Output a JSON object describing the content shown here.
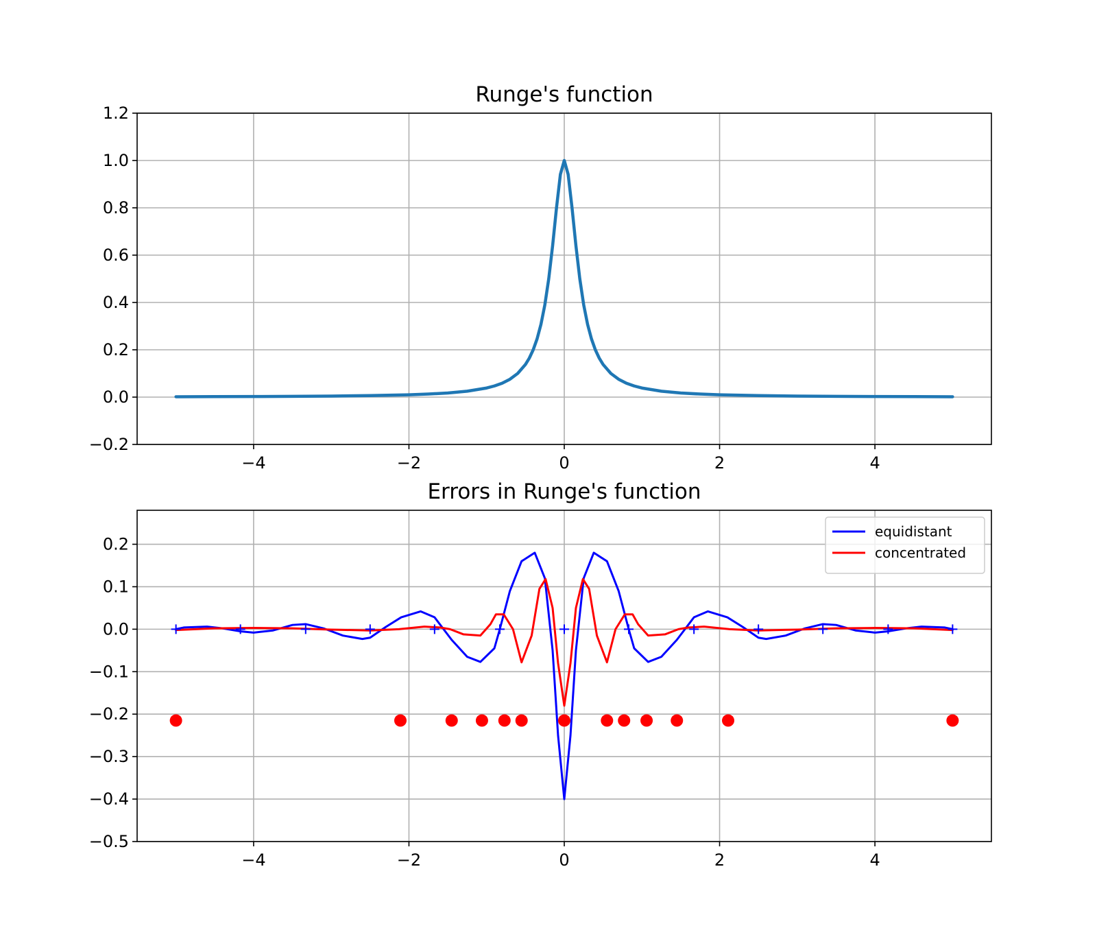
{
  "chart_data": [
    {
      "type": "line",
      "title": "Runge's function",
      "xlabel": "",
      "ylabel": "",
      "xlim": [
        -5.5,
        5.5
      ],
      "ylim": [
        -0.2,
        1.2
      ],
      "xticks": [
        -4,
        -2,
        0,
        2,
        4
      ],
      "xtick_labels": [
        "−4",
        "−2",
        "0",
        "2",
        "4"
      ],
      "yticks": [
        -0.2,
        0.0,
        0.2,
        0.4,
        0.6,
        0.8,
        1.0,
        1.2
      ],
      "ytick_labels": [
        "−0.2",
        "0.0",
        "0.2",
        "0.4",
        "0.6",
        "0.8",
        "1.0",
        "1.2"
      ],
      "grid": true,
      "series": [
        {
          "color": "#1f77b4",
          "x": [
            -5,
            -4.5,
            -4,
            -3.5,
            -3,
            -2.5,
            -2,
            -1.75,
            -1.5,
            -1.25,
            -1,
            -0.9,
            -0.8,
            -0.7,
            -0.6,
            -0.5,
            -0.45,
            -0.4,
            -0.35,
            -0.3,
            -0.25,
            -0.2,
            -0.15,
            -0.1,
            -0.05,
            0,
            0.05,
            0.1,
            0.15,
            0.2,
            0.25,
            0.3,
            0.35,
            0.4,
            0.45,
            0.5,
            0.6,
            0.7,
            0.8,
            0.9,
            1,
            1.25,
            1.5,
            1.75,
            2,
            2.5,
            3,
            3.5,
            4,
            4.5,
            5
          ],
          "values": [
            0.0016,
            0.002,
            0.0025,
            0.0033,
            0.0044,
            0.0064,
            0.0099,
            0.0129,
            0.0175,
            0.025,
            0.0385,
            0.0471,
            0.0588,
            0.0755,
            0.1,
            0.1379,
            0.1649,
            0.2,
            0.2462,
            0.3077,
            0.3902,
            0.5,
            0.64,
            0.8,
            0.9412,
            1.0,
            0.9412,
            0.8,
            0.64,
            0.5,
            0.3902,
            0.3077,
            0.2462,
            0.2,
            0.1649,
            0.1379,
            0.1,
            0.0755,
            0.0588,
            0.0471,
            0.0385,
            0.025,
            0.0175,
            0.0129,
            0.0099,
            0.0064,
            0.0044,
            0.0033,
            0.0025,
            0.002,
            0.0016
          ]
        }
      ]
    },
    {
      "type": "line",
      "title": "Errors in Runge's function",
      "xlabel": "",
      "ylabel": "",
      "xlim": [
        -5.5,
        5.5
      ],
      "ylim": [
        -0.5,
        0.28
      ],
      "xticks": [
        -4,
        -2,
        0,
        2,
        4
      ],
      "xtick_labels": [
        "−4",
        "−2",
        "0",
        "2",
        "4"
      ],
      "yticks": [
        -0.5,
        -0.4,
        -0.3,
        -0.2,
        -0.1,
        0.0,
        0.1,
        0.2
      ],
      "ytick_labels": [
        "−0.5",
        "−0.4",
        "−0.3",
        "−0.2",
        "−0.1",
        "0.0",
        "0.1",
        "0.2"
      ],
      "grid": true,
      "legend": "top-right",
      "series": [
        {
          "name": "equidistant",
          "color": "#0000ff",
          "x": [
            -5,
            -4.9,
            -4.6,
            -4.4,
            -4.17,
            -4.0,
            -3.75,
            -3.5,
            -3.33,
            -3.1,
            -2.85,
            -2.6,
            -2.5,
            -2.3,
            -2.1,
            -1.85,
            -1.67,
            -1.45,
            -1.25,
            -1.08,
            -0.9,
            -0.83,
            -0.7,
            -0.55,
            -0.38,
            -0.25,
            -0.15,
            -0.08,
            0,
            0.08,
            0.15,
            0.25,
            0.38,
            0.55,
            0.7,
            0.83,
            0.9,
            1.08,
            1.25,
            1.45,
            1.67,
            1.85,
            2.1,
            2.3,
            2.5,
            2.6,
            2.85,
            3.1,
            3.33,
            3.5,
            3.75,
            4.0,
            4.17,
            4.4,
            4.6,
            4.9,
            5
          ],
          "values": [
            0,
            0.004,
            0.006,
            0.002,
            -0.005,
            -0.008,
            -0.003,
            0.01,
            0.012,
            0.002,
            -0.015,
            -0.023,
            -0.02,
            0.005,
            0.028,
            0.042,
            0.028,
            -0.025,
            -0.065,
            -0.077,
            -0.045,
            0.0,
            0.09,
            0.16,
            0.18,
            0.12,
            -0.05,
            -0.25,
            -0.4,
            -0.25,
            -0.05,
            0.12,
            0.18,
            0.16,
            0.09,
            0.0,
            -0.045,
            -0.077,
            -0.065,
            -0.025,
            0.028,
            0.042,
            0.028,
            0.005,
            -0.02,
            -0.023,
            -0.015,
            0.002,
            0.012,
            0.01,
            -0.003,
            -0.008,
            -0.005,
            0.002,
            0.006,
            0.004,
            0
          ]
        },
        {
          "name": "concentrated",
          "color": "#ff0000",
          "x": [
            -5,
            -4.5,
            -4.0,
            -3.5,
            -3.0,
            -2.5,
            -2.13,
            -1.8,
            -1.6,
            -1.47,
            -1.3,
            -1.08,
            -0.95,
            -0.88,
            -0.78,
            -0.66,
            -0.55,
            -0.42,
            -0.32,
            -0.24,
            -0.15,
            -0.08,
            0,
            0.08,
            0.15,
            0.24,
            0.32,
            0.42,
            0.55,
            0.66,
            0.78,
            0.88,
            0.95,
            1.08,
            1.3,
            1.47,
            1.6,
            1.8,
            2.13,
            2.5,
            3.0,
            3.5,
            4.0,
            4.5,
            5
          ],
          "values": [
            -0.002,
            0.002,
            0.003,
            0.002,
            -0.001,
            -0.003,
            0.0,
            0.006,
            0.004,
            0.0,
            -0.012,
            -0.015,
            0.012,
            0.035,
            0.035,
            0.0,
            -0.078,
            -0.015,
            0.095,
            0.118,
            0.05,
            -0.08,
            -0.18,
            -0.08,
            0.05,
            0.118,
            0.095,
            -0.015,
            -0.078,
            0.0,
            0.035,
            0.035,
            0.012,
            -0.015,
            -0.012,
            0.0,
            0.004,
            0.006,
            0.0,
            -0.003,
            -0.001,
            0.002,
            0.003,
            0.002,
            -0.002
          ]
        }
      ],
      "markers": [
        {
          "marker": "plus",
          "color": "#0000ff",
          "x": [
            -5,
            -4.17,
            -3.33,
            -2.5,
            -1.67,
            -0.83,
            0,
            0.83,
            1.67,
            2.5,
            3.33,
            4.17,
            5
          ],
          "y": [
            0,
            0,
            0,
            0,
            0,
            0,
            0,
            0,
            0,
            0,
            0,
            0,
            0
          ]
        },
        {
          "marker": "circle",
          "color": "#ff0000",
          "x": [
            -5,
            -2.11,
            -1.45,
            -1.06,
            -0.77,
            -0.55,
            0,
            0.55,
            0.77,
            1.06,
            1.45,
            2.11,
            5
          ],
          "y": [
            -0.215,
            -0.215,
            -0.215,
            -0.215,
            -0.215,
            -0.215,
            -0.215,
            -0.215,
            -0.215,
            -0.215,
            -0.215,
            -0.215,
            -0.215
          ]
        }
      ]
    }
  ]
}
